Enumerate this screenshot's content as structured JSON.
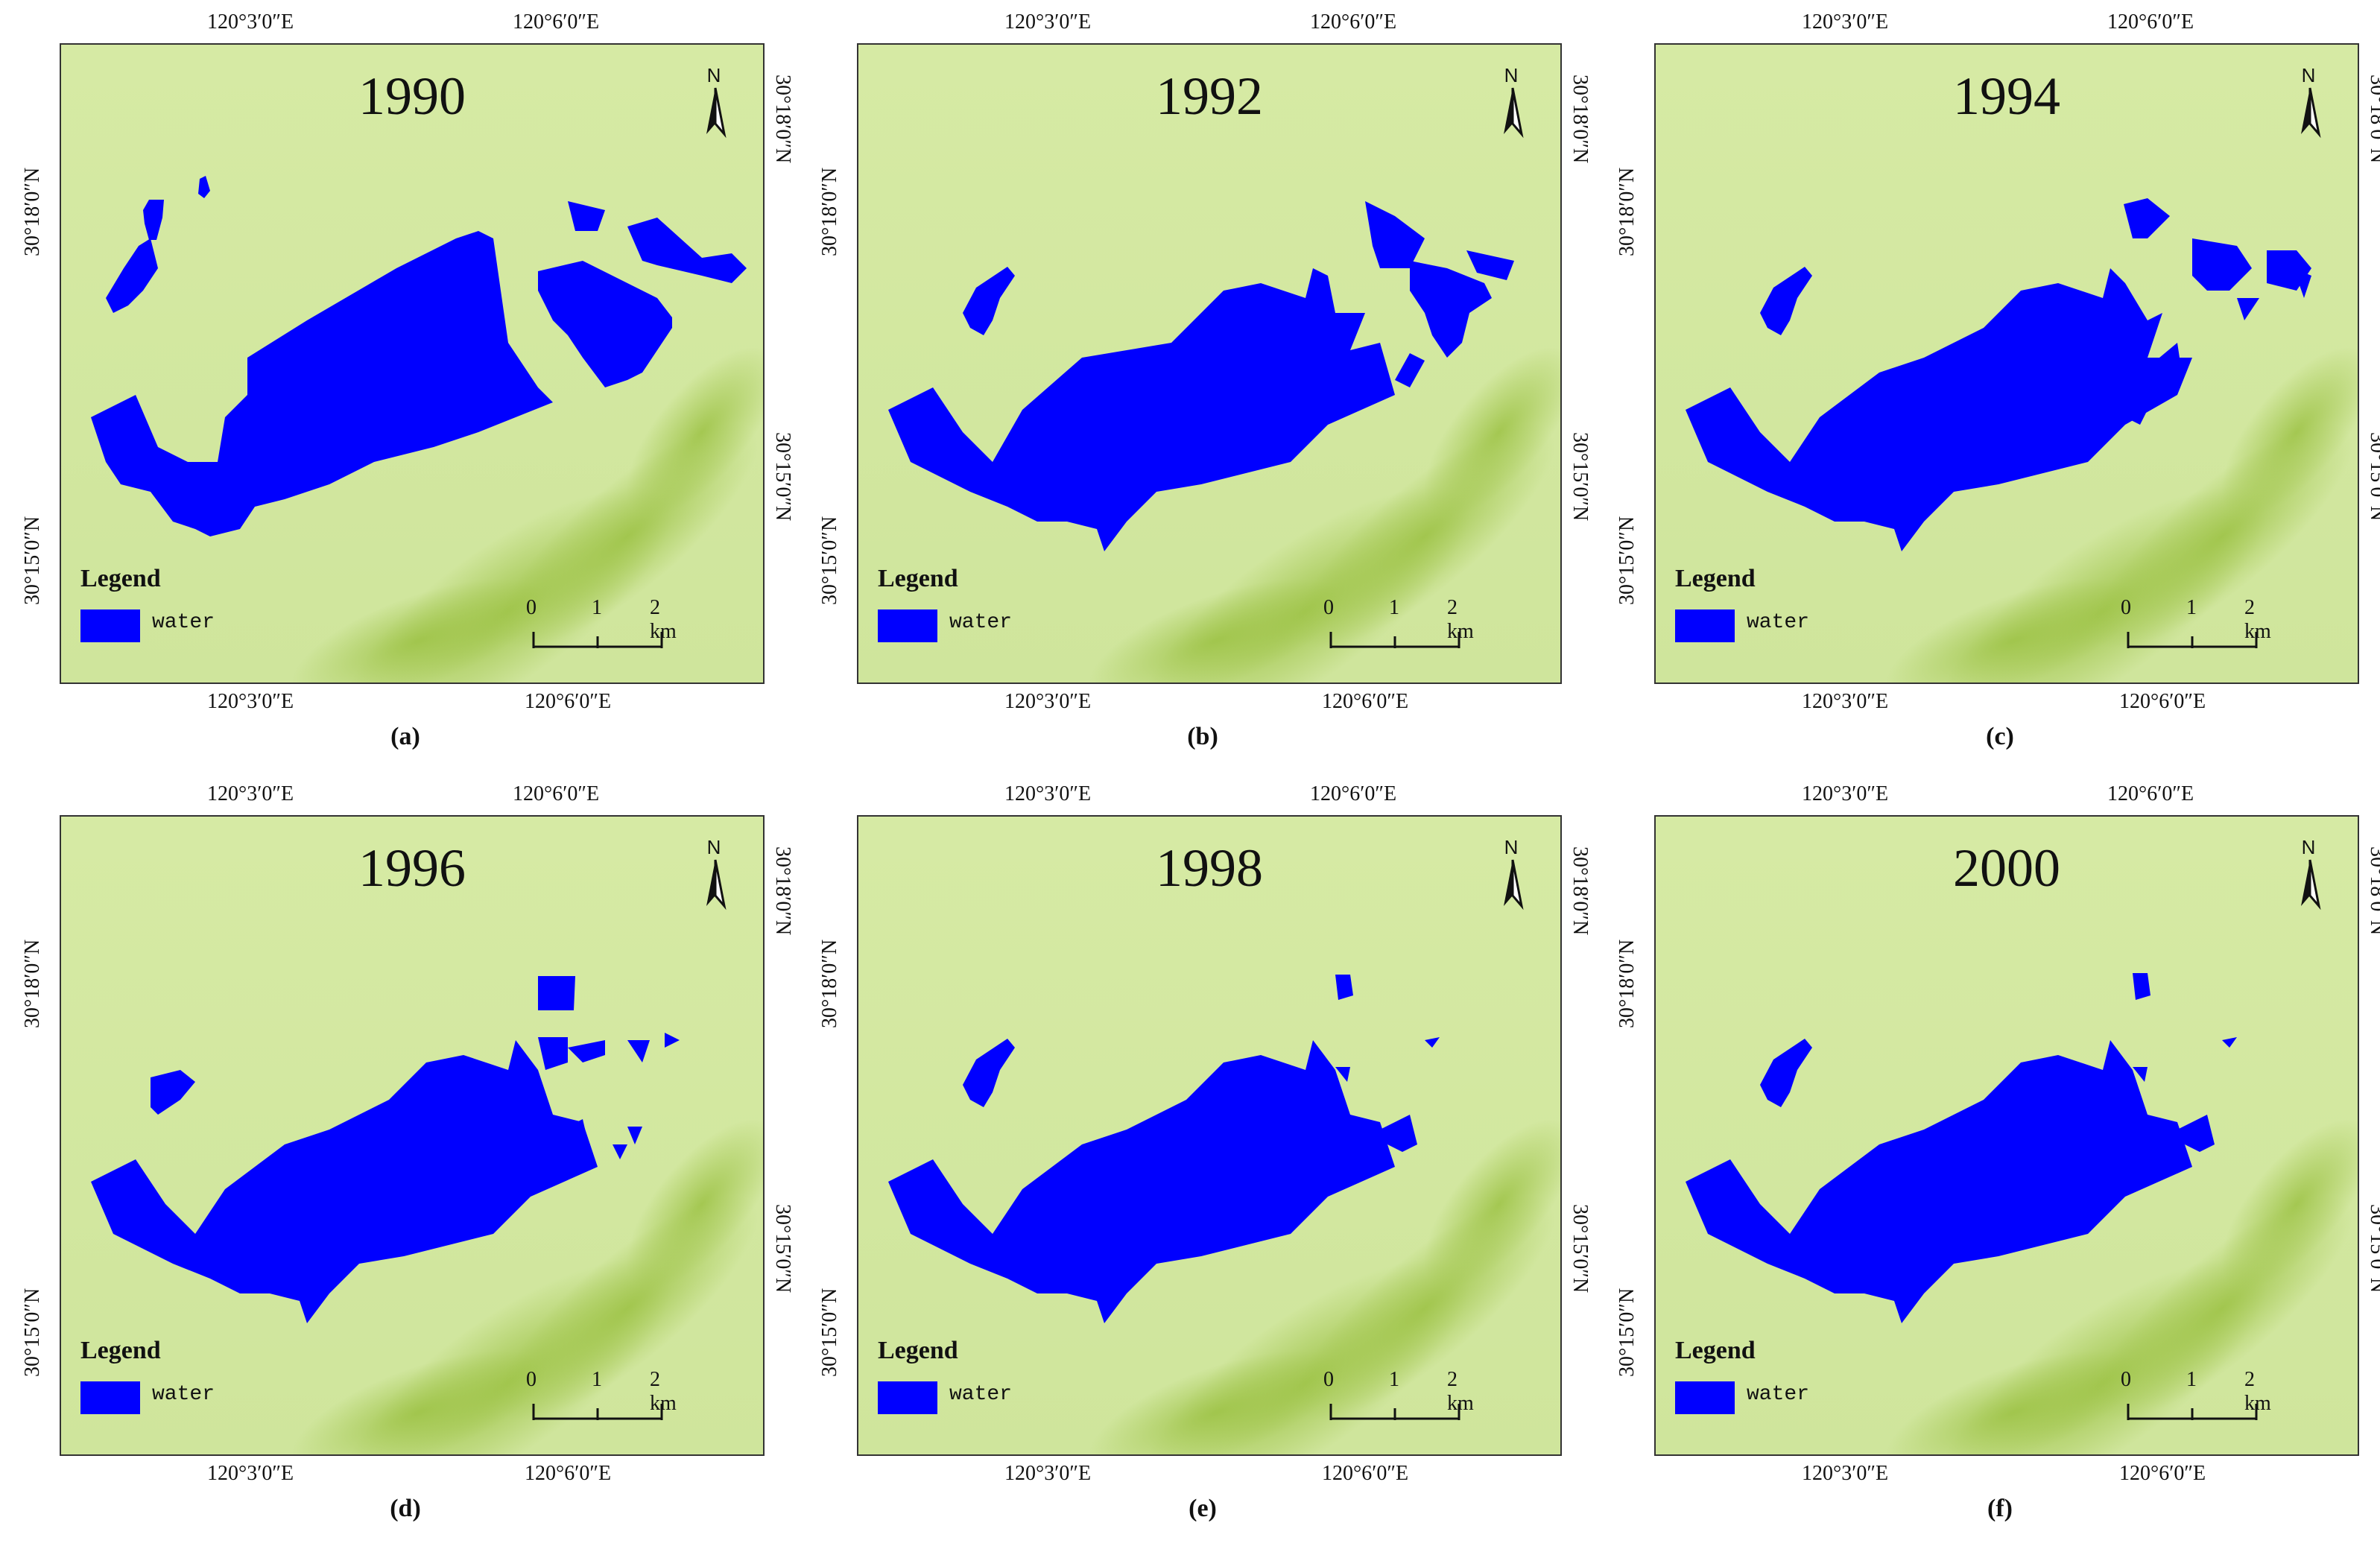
{
  "coords": {
    "lon_a": "120°3′0″E",
    "lon_b": "120°6′0″E",
    "lat_a": "30°18′0″N",
    "lat_b": "30°15′0″N"
  },
  "legend": {
    "title": "Legend",
    "label": "water"
  },
  "north": "N",
  "scale": {
    "t0": "0",
    "t1": "1",
    "t2": "2 km"
  },
  "colors": {
    "water": "#0000ff",
    "land_light": "#d6eaa4",
    "land_dark": "#9cc244"
  },
  "panels": [
    {
      "year": "1990",
      "caption": "(a)"
    },
    {
      "year": "1992",
      "caption": "(b)"
    },
    {
      "year": "1994",
      "caption": "(c)"
    },
    {
      "year": "1996",
      "caption": "(d)"
    },
    {
      "year": "1998",
      "caption": "(e)"
    },
    {
      "year": "2000",
      "caption": "(f)"
    }
  ]
}
